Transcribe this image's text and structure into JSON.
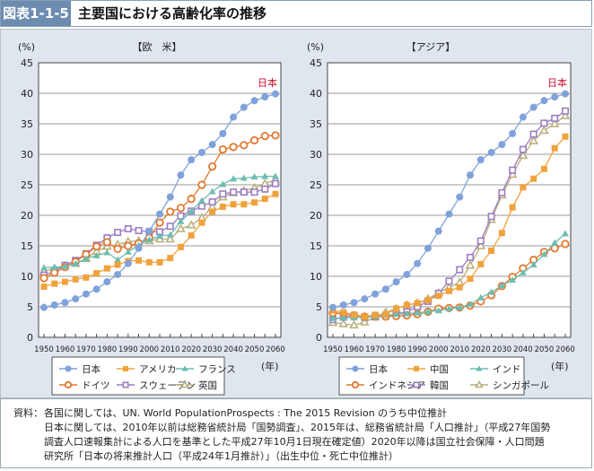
{
  "header": {
    "figure_id": "図表1-1-5",
    "title": "主要国における高齢化率の推移"
  },
  "footnote": {
    "label": "資料：",
    "lines": [
      "各国に関しては、UN. World PopulationProspects : The 2015 Revision のうち中位推計",
      "日本に関しては、2010年以前は総務省統計局「国勢調査」、2015年は、総務省統計局「人口推計」（平成27年国勢",
      "調査人口速報集計による人口を基準とした平成27年10月1日現在確定値）2020年以降は国立社会保障・人口問題",
      "研究所「日本の将来推計人口（平成24年1月推計）」（出生中位・死亡中位推計）"
    ]
  },
  "chart_data": [
    {
      "type": "line",
      "title": "【欧　米】",
      "ylabel": "(%)",
      "xlabel": "(年)",
      "annotation": "日本",
      "ylim": [
        0,
        45
      ],
      "yticks": [
        0,
        5,
        10,
        15,
        20,
        25,
        30,
        35,
        40,
        45
      ],
      "xticks": [
        1950,
        1960,
        1970,
        1980,
        1990,
        2000,
        2010,
        2020,
        2030,
        2040,
        2050,
        2060
      ],
      "x": [
        1950,
        1955,
        1960,
        1965,
        1970,
        1975,
        1980,
        1985,
        1990,
        1995,
        2000,
        2005,
        2010,
        2015,
        2020,
        2025,
        2030,
        2035,
        2040,
        2045,
        2050,
        2055,
        2060
      ],
      "series": [
        {
          "name": "日本",
          "color": "#7fa2da",
          "marker": "dot",
          "values": [
            4.9,
            5.3,
            5.7,
            6.3,
            7.1,
            7.9,
            9.1,
            10.3,
            12.1,
            14.6,
            17.4,
            20.2,
            23.0,
            26.6,
            29.1,
            30.3,
            31.6,
            33.4,
            36.1,
            37.7,
            38.8,
            39.4,
            39.9
          ]
        },
        {
          "name": "アメリカ",
          "color": "#f0a23c",
          "marker": "square",
          "values": [
            8.3,
            8.8,
            9.1,
            9.5,
            9.8,
            10.5,
            11.3,
            11.9,
            12.5,
            12.6,
            12.3,
            12.3,
            13.0,
            14.8,
            16.7,
            18.8,
            20.6,
            21.4,
            21.8,
            21.8,
            22.1,
            22.7,
            23.5
          ]
        },
        {
          "name": "フランス",
          "color": "#6cbdb1",
          "marker": "triangle",
          "values": [
            11.4,
            11.5,
            11.6,
            12.1,
            12.9,
            13.4,
            13.9,
            12.7,
            14.0,
            15.1,
            16.0,
            16.6,
            16.8,
            19.0,
            20.7,
            22.4,
            23.9,
            25.1,
            26.0,
            26.1,
            26.3,
            26.4,
            26.4
          ]
        },
        {
          "name": "ドイツ",
          "color": "#e2772e",
          "marker": "circle",
          "values": [
            9.7,
            10.6,
            11.5,
            12.4,
            13.6,
            14.9,
            15.6,
            14.5,
            15.0,
            15.4,
            16.3,
            18.8,
            20.6,
            21.2,
            22.7,
            25.0,
            28.0,
            30.8,
            31.2,
            31.5,
            32.3,
            33.0,
            33.1
          ]
        },
        {
          "name": "スウェーデン",
          "color": "#9c7dc2",
          "marker": "opensquare",
          "values": [
            10.2,
            10.8,
            11.8,
            12.6,
            13.7,
            15.1,
            16.3,
            17.2,
            17.8,
            17.5,
            17.3,
            17.3,
            18.2,
            19.9,
            20.7,
            21.5,
            22.2,
            23.5,
            23.8,
            23.8,
            23.8,
            24.3,
            25.2
          ]
        },
        {
          "name": "英国",
          "color": "#b9ad79",
          "marker": "opentriangle",
          "values": [
            10.8,
            11.3,
            11.7,
            12.1,
            12.9,
            14.1,
            14.9,
            15.2,
            15.7,
            15.8,
            15.8,
            16.1,
            16.1,
            17.8,
            18.4,
            19.6,
            21.4,
            23.0,
            23.7,
            24.0,
            24.5,
            25.2,
            25.8
          ]
        }
      ]
    },
    {
      "type": "line",
      "title": "【アジア】",
      "ylabel": "(%)",
      "xlabel": "(年)",
      "annotation": "日本",
      "ylim": [
        0,
        45
      ],
      "yticks": [
        0,
        5,
        10,
        15,
        20,
        25,
        30,
        35,
        40,
        45
      ],
      "xticks": [
        1950,
        1960,
        1970,
        1980,
        1990,
        2000,
        2010,
        2020,
        2030,
        2040,
        2050,
        2060
      ],
      "x": [
        1950,
        1955,
        1960,
        1965,
        1970,
        1975,
        1980,
        1985,
        1990,
        1995,
        2000,
        2005,
        2010,
        2015,
        2020,
        2025,
        2030,
        2035,
        2040,
        2045,
        2050,
        2055,
        2060
      ],
      "series": [
        {
          "name": "日本",
          "color": "#7fa2da",
          "marker": "dot",
          "values": [
            4.9,
            5.3,
            5.7,
            6.3,
            7.1,
            7.9,
            9.1,
            10.3,
            12.1,
            14.6,
            17.4,
            20.2,
            23.0,
            26.6,
            29.1,
            30.3,
            31.6,
            33.4,
            36.1,
            37.7,
            38.8,
            39.4,
            39.9
          ]
        },
        {
          "name": "中国",
          "color": "#f0a23c",
          "marker": "square",
          "values": [
            4.4,
            4.1,
            3.7,
            3.4,
            3.7,
            3.8,
            4.7,
            5.3,
            5.6,
            6.1,
            6.8,
            7.6,
            8.2,
            9.6,
            12.0,
            14.2,
            17.1,
            21.3,
            24.6,
            26.0,
            27.6,
            31.0,
            32.9
          ]
        },
        {
          "name": "インド",
          "color": "#6cbdb1",
          "marker": "triangle",
          "values": [
            3.1,
            3.2,
            3.2,
            3.3,
            3.4,
            3.6,
            3.8,
            3.9,
            4.0,
            4.2,
            4.4,
            4.7,
            4.9,
            5.4,
            6.5,
            7.4,
            8.5,
            9.4,
            10.6,
            11.9,
            13.6,
            15.5,
            17.0
          ]
        },
        {
          "name": "インドネシア",
          "color": "#e2772e",
          "marker": "circle",
          "values": [
            4.0,
            3.9,
            3.6,
            3.4,
            3.4,
            3.4,
            3.5,
            3.6,
            3.8,
            4.2,
            4.7,
            4.8,
            4.9,
            5.2,
            5.9,
            6.9,
            8.4,
            9.9,
            11.3,
            12.7,
            14.0,
            14.6,
            15.3
          ]
        },
        {
          "name": "韓国",
          "color": "#9c7dc2",
          "marker": "opensquare",
          "values": [
            2.9,
            3.3,
            3.6,
            3.3,
            3.4,
            3.5,
            3.8,
            4.2,
            5.0,
            5.9,
            7.2,
            9.2,
            11.1,
            13.1,
            15.8,
            19.8,
            23.7,
            27.4,
            30.8,
            33.3,
            35.1,
            35.9,
            37.1
          ]
        },
        {
          "name": "シンガポール",
          "color": "#b9ad79",
          "marker": "opentriangle",
          "values": [
            2.4,
            2.2,
            2.0,
            2.5,
            3.3,
            4.1,
            4.7,
            5.3,
            5.6,
            6.3,
            7.3,
            8.2,
            9.0,
            11.8,
            15.0,
            19.3,
            23.3,
            26.7,
            29.8,
            32.2,
            33.9,
            35.0,
            36.3
          ]
        }
      ]
    }
  ]
}
